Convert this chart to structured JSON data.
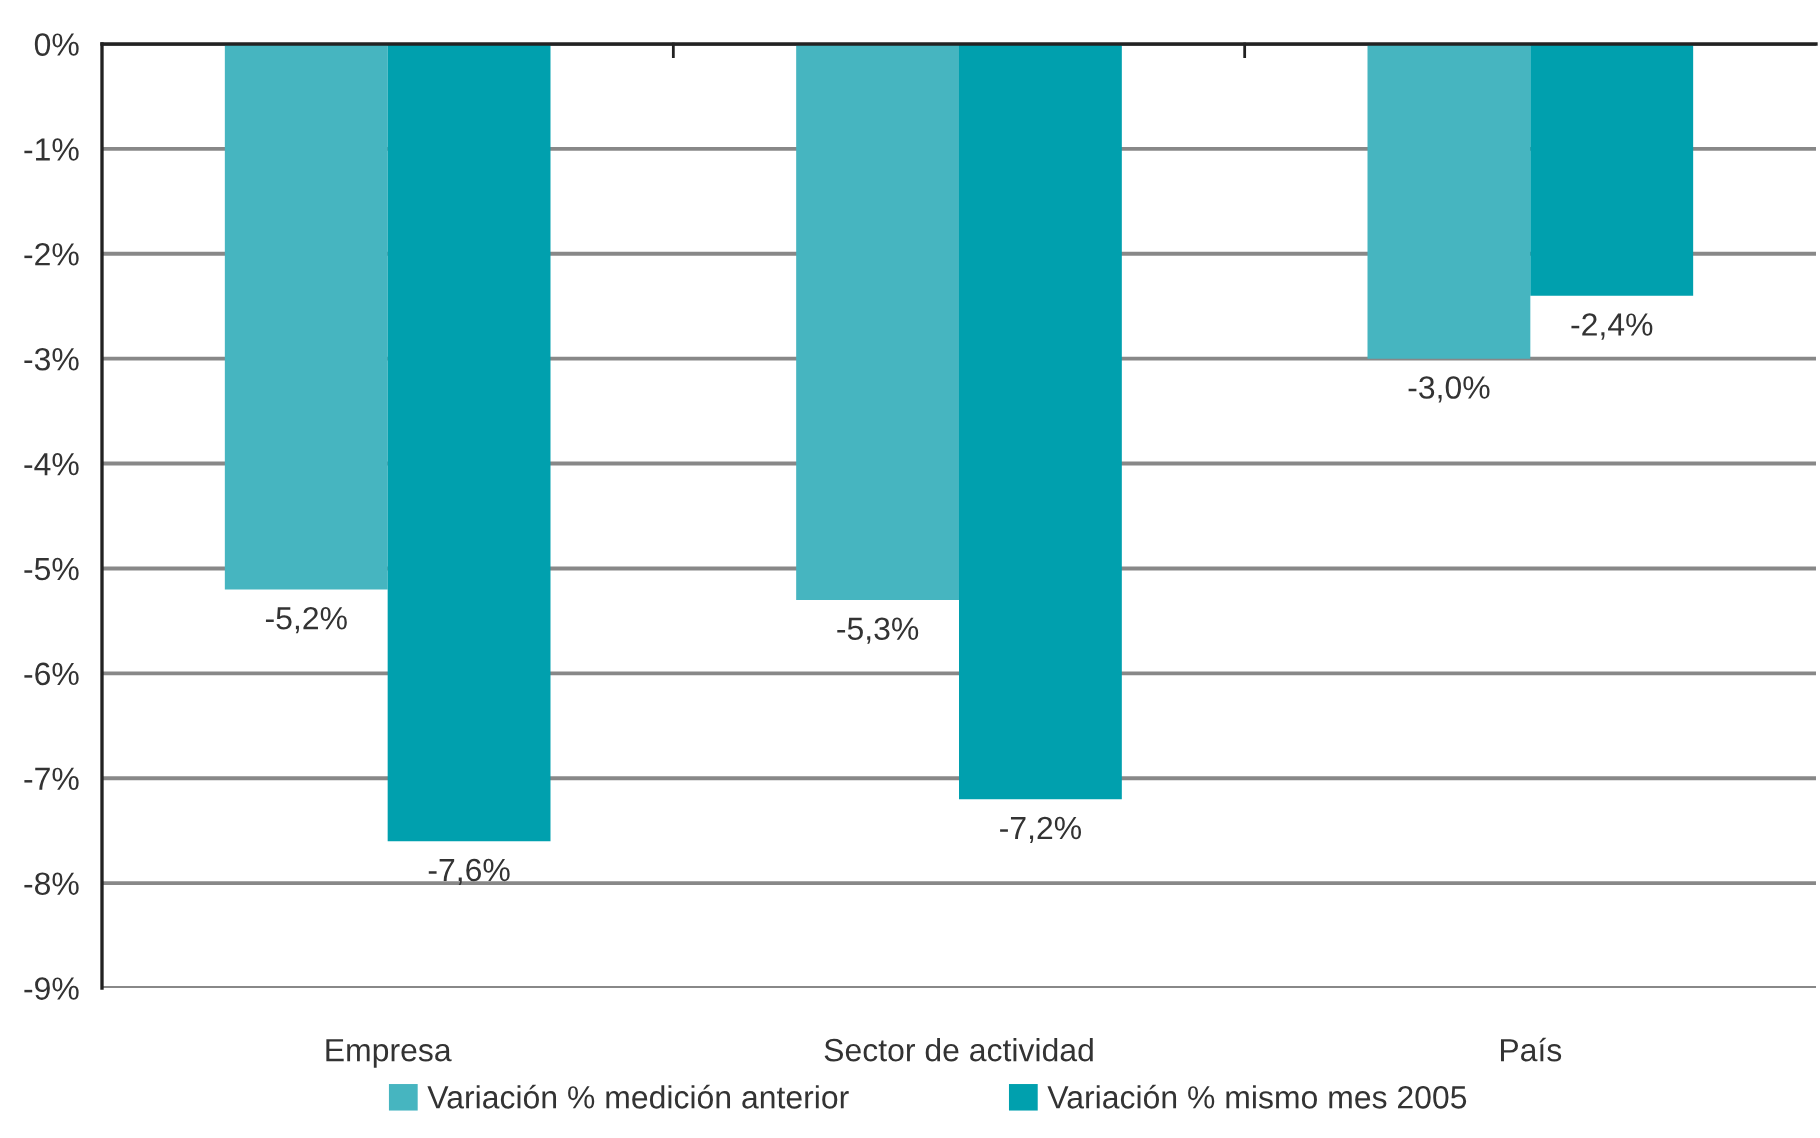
{
  "chart_data": {
    "type": "bar",
    "categories": [
      "Empresa",
      "Sector de actividad",
      "País"
    ],
    "series": [
      {
        "name": "Variación % medición anterior",
        "color": "#46b5c0",
        "values": [
          -5.2,
          -5.3,
          -3.0
        ],
        "value_labels": [
          "-5,2%",
          "-5,3%",
          "-3,0%"
        ]
      },
      {
        "name": "Variación % mismo mes 2005",
        "color": "#00a0ae",
        "values": [
          -7.6,
          -7.2,
          -2.4
        ],
        "value_labels": [
          "-7,6%",
          "-7,2%",
          "-2,4%"
        ]
      }
    ],
    "ylim": [
      -9,
      0
    ],
    "yticks": [
      {
        "value": 0,
        "label": "0%"
      },
      {
        "value": -1,
        "label": "-1%"
      },
      {
        "value": -2,
        "label": "-2%"
      },
      {
        "value": -3,
        "label": "-3%"
      },
      {
        "value": -4,
        "label": "-4%"
      },
      {
        "value": -5,
        "label": "-5%"
      },
      {
        "value": -6,
        "label": "-6%"
      },
      {
        "value": -7,
        "label": "-7%"
      },
      {
        "value": -8,
        "label": "-8%"
      },
      {
        "value": -9,
        "label": "-9%"
      }
    ],
    "grid": "y",
    "legend": "bottom"
  }
}
